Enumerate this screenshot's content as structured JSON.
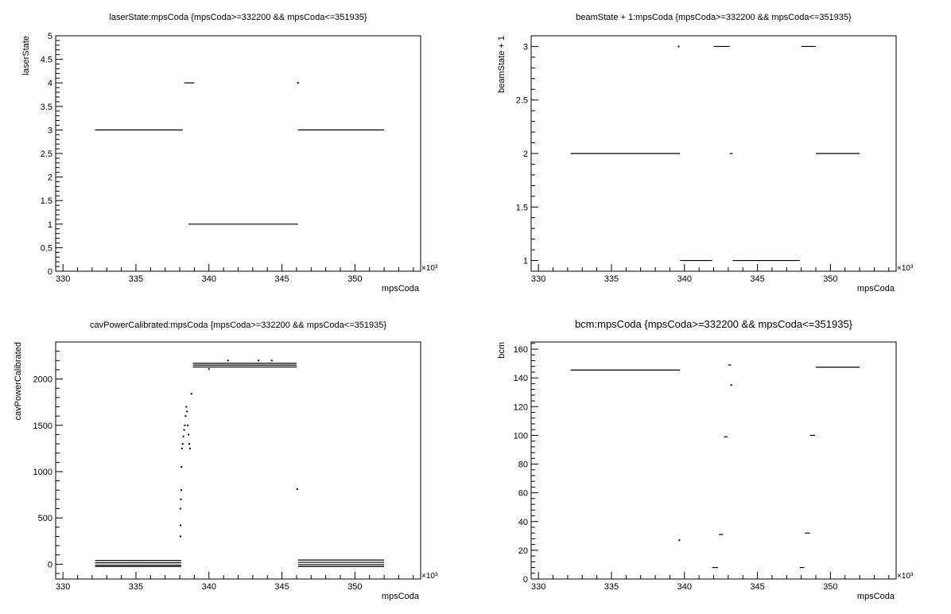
{
  "chart_data": [
    {
      "type": "scatter",
      "title": "laserState:mpsCoda {mpsCoda>=332200 && mpsCoda<=351935}",
      "xlabel": "mpsCoda",
      "ylabel": "laserState",
      "x_multiplier": "×10³",
      "xlim": [
        329.5,
        354.5
      ],
      "ylim": [
        0,
        5
      ],
      "xticks": [
        330,
        335,
        340,
        345,
        350
      ],
      "yticks": [
        0,
        0.5,
        1,
        1.5,
        2,
        2.5,
        3,
        3.5,
        4,
        4.5,
        5
      ],
      "ytick_labels": [
        "0",
        "0.5",
        "1",
        "1.5",
        "2",
        "2.5",
        "3",
        "3.5",
        "4",
        "4.5",
        "5"
      ],
      "segments": [
        {
          "x": [
            332.2,
            338.2
          ],
          "y": 3
        },
        {
          "x": [
            338.3,
            339.0
          ],
          "y": 4
        },
        {
          "x": [
            338.6,
            346.1
          ],
          "y": 1
        },
        {
          "x": [
            346.1,
            352.0
          ],
          "y": 3
        }
      ],
      "points": [
        {
          "x": 346.1,
          "y": 4
        }
      ]
    },
    {
      "type": "scatter",
      "title": "beamState + 1:mpsCoda {mpsCoda>=332200 && mpsCoda<=351935}",
      "xlabel": "mpsCoda",
      "ylabel": "beamState + 1",
      "x_multiplier": "×10³",
      "xlim": [
        329.5,
        354.5
      ],
      "ylim": [
        0.9,
        3.1
      ],
      "xticks": [
        330,
        335,
        340,
        345,
        350
      ],
      "yticks": [
        1,
        1.5,
        2,
        2.5,
        3
      ],
      "ytick_labels": [
        "1",
        "1.5",
        "2",
        "2.5",
        "3"
      ],
      "segments": [
        {
          "x": [
            332.2,
            339.7
          ],
          "y": 2
        },
        {
          "x": [
            339.7,
            341.9
          ],
          "y": 1
        },
        {
          "x": [
            342.0,
            343.1
          ],
          "y": 3
        },
        {
          "x": [
            343.1,
            343.3
          ],
          "y": 2
        },
        {
          "x": [
            343.3,
            347.9
          ],
          "y": 1
        },
        {
          "x": [
            348.0,
            349.0
          ],
          "y": 3
        },
        {
          "x": [
            349.0,
            352.0
          ],
          "y": 2
        }
      ],
      "points": [
        {
          "x": 339.6,
          "y": 3
        }
      ]
    },
    {
      "type": "scatter",
      "title": "cavPowerCalibrated:mpsCoda {mpsCoda>=332200 && mpsCoda<=351935}",
      "xlabel": "mpsCoda",
      "ylabel": "cavPowerCalibrated",
      "x_multiplier": "×10³",
      "xlim": [
        329.5,
        354.5
      ],
      "ylim": [
        -160,
        2400
      ],
      "xticks": [
        330,
        335,
        340,
        345,
        350
      ],
      "yticks": [
        0,
        500,
        1000,
        1500,
        2000
      ],
      "ytick_labels": [
        "0",
        "500",
        "1000",
        "1500",
        "2000"
      ],
      "segments": [
        {
          "x": [
            332.2,
            338.1
          ],
          "y": 40
        },
        {
          "x": [
            332.2,
            338.1
          ],
          "y": 15
        },
        {
          "x": [
            332.2,
            338.1
          ],
          "y": -10
        },
        {
          "x": [
            332.2,
            338.1
          ],
          "y": -25
        },
        {
          "x": [
            338.9,
            346.0
          ],
          "y": 2170
        },
        {
          "x": [
            338.9,
            346.0
          ],
          "y": 2150
        },
        {
          "x": [
            338.9,
            346.0
          ],
          "y": 2130
        },
        {
          "x": [
            346.1,
            352.0
          ],
          "y": 45
        },
        {
          "x": [
            346.1,
            352.0
          ],
          "y": 20
        },
        {
          "x": [
            346.1,
            352.0
          ],
          "y": -5
        },
        {
          "x": [
            346.1,
            352.0
          ],
          "y": -25
        }
      ],
      "points": [
        {
          "x": 338.05,
          "y": 300
        },
        {
          "x": 338.05,
          "y": 420
        },
        {
          "x": 338.05,
          "y": 600
        },
        {
          "x": 338.08,
          "y": 700
        },
        {
          "x": 338.1,
          "y": 800
        },
        {
          "x": 338.12,
          "y": 1050
        },
        {
          "x": 338.15,
          "y": 1250
        },
        {
          "x": 338.2,
          "y": 1300
        },
        {
          "x": 338.25,
          "y": 1380
        },
        {
          "x": 338.3,
          "y": 1450
        },
        {
          "x": 338.35,
          "y": 1500
        },
        {
          "x": 338.4,
          "y": 1600
        },
        {
          "x": 338.45,
          "y": 1700
        },
        {
          "x": 338.5,
          "y": 1650
        },
        {
          "x": 338.55,
          "y": 1500
        },
        {
          "x": 338.6,
          "y": 1400
        },
        {
          "x": 338.65,
          "y": 1300
        },
        {
          "x": 338.7,
          "y": 1250
        },
        {
          "x": 338.8,
          "y": 1840
        },
        {
          "x": 340.0,
          "y": 2110
        },
        {
          "x": 341.3,
          "y": 2200
        },
        {
          "x": 343.4,
          "y": 2200
        },
        {
          "x": 344.3,
          "y": 2200
        },
        {
          "x": 346.05,
          "y": 810
        }
      ]
    },
    {
      "type": "scatter",
      "title": "bcm:mpsCoda {mpsCoda>=332200 && mpsCoda<=351935}",
      "xlabel": "mpsCoda",
      "ylabel": "bcm",
      "x_multiplier": "×10³",
      "xlim": [
        329.5,
        354.5
      ],
      "ylim": [
        0,
        165
      ],
      "xticks": [
        330,
        335,
        340,
        345,
        350
      ],
      "yticks": [
        0,
        20,
        40,
        60,
        80,
        100,
        120,
        140,
        160
      ],
      "ytick_labels": [
        "0",
        "20",
        "40",
        "60",
        "80",
        "100",
        "120",
        "140",
        "160"
      ],
      "segments": [
        {
          "x": [
            332.2,
            339.7
          ],
          "y": 145.5
        },
        {
          "x": [
            341.9,
            342.3
          ],
          "y": 8
        },
        {
          "x": [
            342.35,
            342.65
          ],
          "y": 31
        },
        {
          "x": [
            342.7,
            342.95
          ],
          "y": 99
        },
        {
          "x": [
            343.0,
            343.2
          ],
          "y": 149
        },
        {
          "x": [
            347.9,
            348.2
          ],
          "y": 8
        },
        {
          "x": [
            348.25,
            348.6
          ],
          "y": 32
        },
        {
          "x": [
            348.6,
            348.95
          ],
          "y": 100
        },
        {
          "x": [
            349.0,
            352.0
          ],
          "y": 147.5
        }
      ],
      "points": [
        {
          "x": 339.65,
          "y": 27
        },
        {
          "x": 343.2,
          "y": 135
        }
      ]
    }
  ]
}
